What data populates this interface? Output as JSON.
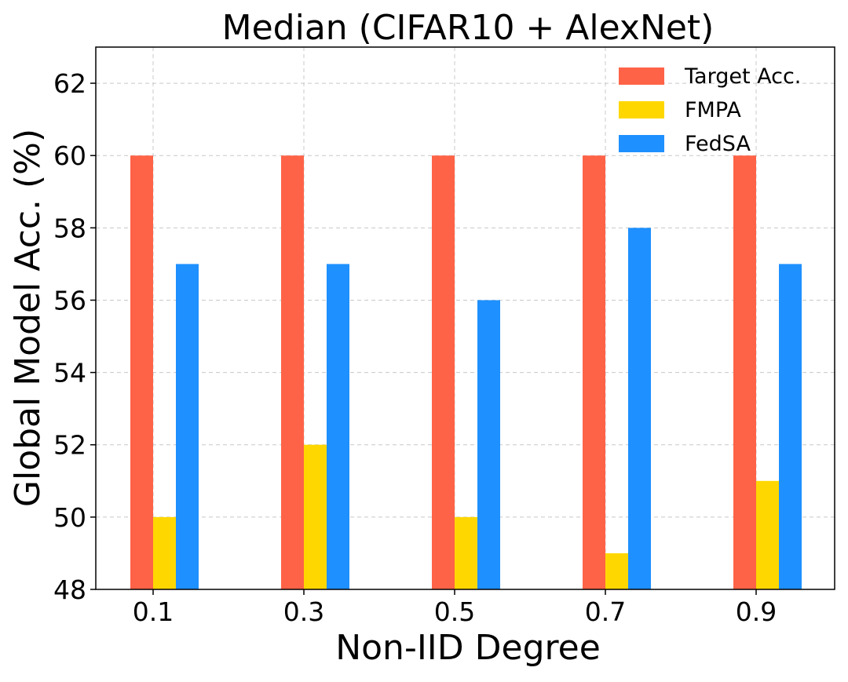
{
  "chart_data": {
    "type": "bar",
    "title": "Median (CIFAR10 + AlexNet)",
    "xlabel": "Non-IID Degree",
    "ylabel": "Global Model Acc. (%)",
    "categories": [
      "0.1",
      "0.3",
      "0.5",
      "0.7",
      "0.9"
    ],
    "ylim": [
      48,
      63
    ],
    "yticks": [
      48,
      50,
      52,
      54,
      56,
      58,
      60,
      62
    ],
    "ytick_labels": [
      "48",
      "50",
      "52",
      "54",
      "56",
      "58",
      "60",
      "62"
    ],
    "grid": true,
    "legend_position": "top-right",
    "series": [
      {
        "name": "Target Acc.",
        "color": "#ff6347",
        "values": [
          60,
          60,
          60,
          60,
          60
        ]
      },
      {
        "name": "FMPA",
        "color": "#ffd700",
        "values": [
          50,
          52,
          50,
          49,
          51
        ]
      },
      {
        "name": "FedSA",
        "color": "#1e90ff",
        "values": [
          57,
          57,
          56,
          58,
          57
        ]
      }
    ]
  }
}
